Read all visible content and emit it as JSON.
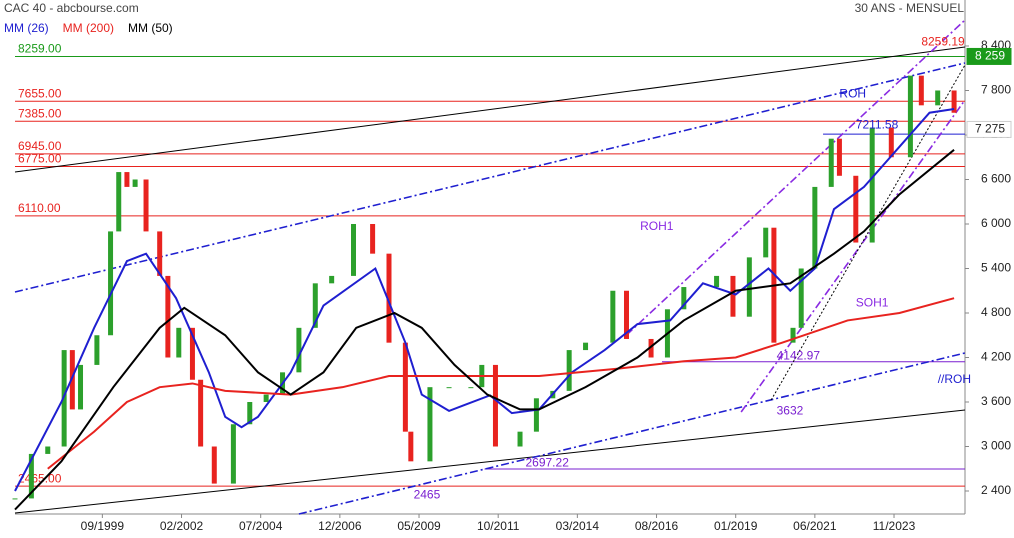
{
  "chart_data": {
    "type": "candlestick",
    "title": "CAC 40 - abcbourse.com",
    "subtitle": "30 ANS - MENSUEL",
    "xlim": [
      "1997-01",
      "2026-01"
    ],
    "ylim": [
      2090,
      9020
    ],
    "xticks": [
      {
        "value": "1999-09",
        "label": "09/1999"
      },
      {
        "value": "2002-02",
        "label": "02/2002"
      },
      {
        "value": "2004-07",
        "label": "07/2004"
      },
      {
        "value": "2006-12",
        "label": "12/2006"
      },
      {
        "value": "2009-05",
        "label": "05/2009"
      },
      {
        "value": "2011-10",
        "label": "10/2011"
      },
      {
        "value": "2014-03",
        "label": "03/2014"
      },
      {
        "value": "2016-08",
        "label": "08/2016"
      },
      {
        "value": "2019-01",
        "label": "01/2019"
      },
      {
        "value": "2021-06",
        "label": "06/2021"
      },
      {
        "value": "2023-11",
        "label": "11/2023"
      }
    ],
    "yticks": [
      {
        "value": 2400,
        "label": "2 400"
      },
      {
        "value": 3000,
        "label": "3 000"
      },
      {
        "value": 3600,
        "label": "3 600"
      },
      {
        "value": 4200,
        "label": "4 200"
      },
      {
        "value": 4800,
        "label": "4 800"
      },
      {
        "value": 5400,
        "label": "5 400"
      },
      {
        "value": 6000,
        "label": "6 000"
      },
      {
        "value": 6600,
        "label": "6 600"
      },
      {
        "value": 7200,
        "label": "7 200"
      },
      {
        "value": 7800,
        "label": "7 800"
      },
      {
        "value": 8400,
        "label": "8 400"
      }
    ],
    "up_color": "#2ca02c",
    "down_color": "#e8231f",
    "x": [
      "1997-01",
      "1997-07",
      "1998-01",
      "1998-07",
      "1998-10",
      "1999-01",
      "1999-07",
      "1999-12",
      "2000-03",
      "2000-06",
      "2000-09",
      "2001-01",
      "2001-06",
      "2001-09",
      "2002-01",
      "2002-06",
      "2002-09",
      "2003-02",
      "2003-09",
      "2004-03",
      "2004-09",
      "2005-03",
      "2005-09",
      "2006-03",
      "2006-09",
      "2007-05",
      "2007-12",
      "2008-06",
      "2008-12",
      "2009-02",
      "2009-09",
      "2010-04",
      "2010-12",
      "2011-04",
      "2011-09",
      "2012-06",
      "2012-12",
      "2013-06",
      "2013-12",
      "2014-06",
      "2015-04",
      "2015-09",
      "2016-06",
      "2016-12",
      "2017-06",
      "2018-06",
      "2018-12",
      "2019-06",
      "2019-12",
      "2020-03",
      "2020-10",
      "2021-01",
      "2021-06",
      "2021-12",
      "2022-03",
      "2022-09",
      "2023-03",
      "2023-10",
      "2024-05",
      "2024-09",
      "2025-03",
      "2025-09"
    ],
    "close": [
      2300,
      2900,
      3000,
      4300,
      3500,
      4100,
      4500,
      5900,
      6700,
      6500,
      6600,
      5900,
      5300,
      4200,
      4600,
      3900,
      3000,
      2500,
      3300,
      3600,
      3700,
      4000,
      4600,
      5200,
      5300,
      6000,
      5600,
      4400,
      3200,
      2800,
      3800,
      3800,
      3800,
      4100,
      3000,
      3200,
      3650,
      3750,
      4300,
      4400,
      5100,
      4450,
      4200,
      4850,
      5150,
      5300,
      4750,
      5550,
      5950,
      4400,
      4600,
      5400,
      6500,
      7150,
      6650,
      5750,
      7300,
      6900,
      8000,
      7600,
      7800,
      7500
    ],
    "series": [
      {
        "name": "MM (26)",
        "color": "#1f1fd0",
        "x": [
          "1997-01",
          "1998-06",
          "1999-06",
          "2000-06",
          "2001-01",
          "2001-12",
          "2002-12",
          "2003-06",
          "2003-12",
          "2004-06",
          "2005-06",
          "2006-06",
          "2008-01",
          "2008-12",
          "2009-06",
          "2010-04",
          "2010-09",
          "2011-07",
          "2012-03",
          "2013-01",
          "2014-01",
          "2015-01",
          "2016-01",
          "2017-01",
          "2018-01",
          "2019-01",
          "2020-01",
          "2020-09",
          "2021-06",
          "2022-01",
          "2022-12",
          "2023-12",
          "2024-12",
          "2025-09"
        ],
        "values": [
          2400,
          3600,
          4600,
          5500,
          5600,
          5000,
          4000,
          3400,
          3260,
          3400,
          4000,
          4900,
          5400,
          4400,
          3700,
          3480,
          3550,
          3690,
          3450,
          3500,
          4000,
          4300,
          4650,
          4700,
          5200,
          5050,
          5400,
          5100,
          5400,
          6200,
          6500,
          7000,
          7500,
          7550
        ]
      },
      {
        "name": "MM (200)",
        "color": "#e8231f",
        "x": [
          "1998-01",
          "1999-06",
          "2000-06",
          "2001-06",
          "2002-06",
          "2003-06",
          "2005-06",
          "2007-01",
          "2008-06",
          "2010-06",
          "2013-01",
          "2015-06",
          "2017-06",
          "2019-01",
          "2020-06",
          "2022-06",
          "2024-01",
          "2025-09"
        ],
        "values": [
          2700,
          3200,
          3600,
          3800,
          3850,
          3750,
          3700,
          3800,
          3950,
          3950,
          3950,
          4050,
          4150,
          4200,
          4400,
          4700,
          4800,
          5000
        ]
      },
      {
        "name": "MM (50)",
        "color": "#000000",
        "x": [
          "1997-01",
          "1998-06",
          "2000-01",
          "2001-06",
          "2002-03",
          "2003-06",
          "2004-06",
          "2005-06",
          "2006-06",
          "2007-06",
          "2008-08",
          "2009-06",
          "2010-06",
          "2011-06",
          "2012-06",
          "2013-01",
          "2014-06",
          "2016-01",
          "2017-06",
          "2019-01",
          "2020-09",
          "2022-01",
          "2022-12",
          "2024-01",
          "2025-09"
        ],
        "values": [
          2150,
          2800,
          3800,
          4600,
          4870,
          4500,
          4000,
          3700,
          4000,
          4600,
          4800,
          4600,
          4100,
          3700,
          3500,
          3500,
          3800,
          4200,
          4700,
          5100,
          5200,
          5600,
          5900,
          6400,
          7000
        ]
      }
    ],
    "levels": [
      {
        "value": 8259,
        "label": "8259.00",
        "color": "#1a9a1a"
      },
      {
        "value": 7655,
        "label": "7655.00",
        "color": "#e8231f"
      },
      {
        "value": 7385,
        "label": "7385.00",
        "color": "#e8231f"
      },
      {
        "value": 6945,
        "label": "6945.00",
        "color": "#e8231f"
      },
      {
        "value": 6775,
        "label": "6775.00",
        "color": "#e8231f"
      },
      {
        "value": 6110,
        "label": "6110.00",
        "color": "#e8231f"
      },
      {
        "value": 2465,
        "label": "2465.00",
        "color": "#e8231f"
      }
    ],
    "price_levels": [
      {
        "value": 7211.58,
        "from": "2021-09",
        "color": "#1f1fd0"
      },
      {
        "value": 4142.97,
        "from": "2016-10",
        "color": "#7a1fd0"
      },
      {
        "value": 2697.22,
        "from": "2011-05",
        "color": "#7a1fd0"
      }
    ],
    "trendlines": [
      {
        "from": [
          "1997-01",
          6701
        ],
        "to": [
          "2026-01",
          8386
        ],
        "color": "#000000",
        "style": "solid"
      },
      {
        "from": [
          "1997-01",
          2103
        ],
        "to": [
          "2026-01",
          3492
        ],
        "color": "#000000",
        "style": "solid"
      },
      {
        "label": "ROH",
        "from": [
          "1997-01",
          5083
        ],
        "to": [
          "2026-01",
          8171
        ],
        "color": "#1f1fd0",
        "style": "dashdot",
        "at": [
          "2022-03",
          7750
        ]
      },
      {
        "label": "//ROH",
        "from": [
          "2005-09",
          2090
        ],
        "to": [
          "2026-01",
          4261
        ],
        "color": "#1f1fd0",
        "style": "dashdot",
        "at": [
          "2025-03",
          3900
        ]
      },
      {
        "label": "ROH1",
        "from": [
          "2015-09",
          4503
        ],
        "to": [
          "2026-01",
          8750
        ],
        "color": "#8a2be2",
        "style": "dashdot",
        "at": [
          "2016-02",
          5960
        ]
      },
      {
        "label": "SOH1",
        "from": [
          "2019-03",
          3465
        ],
        "to": [
          "2026-01",
          7672
        ],
        "color": "#8a2be2",
        "style": "dashdot",
        "at": [
          "2022-09",
          4930
        ]
      },
      {
        "from": [
          "2020-02",
          3627
        ],
        "to": [
          "2026-01",
          8144
        ],
        "color": "#000000",
        "style": "dotted"
      }
    ],
    "annotations": [
      {
        "text": 8259.19,
        "at": [
          "2024-09",
          8450
        ],
        "color": "#e8231f"
      },
      {
        "text": 7211.58,
        "at": [
          "2022-09",
          7330
        ],
        "color": "#1f1fd0"
      },
      {
        "text": 4142.97,
        "at": [
          "2020-04",
          4215
        ],
        "color": "#7a1fd0"
      },
      {
        "text": 2697.22,
        "at": [
          "2012-08",
          2770
        ],
        "color": "#7a1fd0"
      },
      {
        "text": 2465,
        "at": [
          "2009-03",
          2345
        ],
        "color": "#7a1fd0"
      },
      {
        "text": 3632,
        "at": [
          "2020-04",
          3475
        ],
        "color": "#7a1fd0"
      }
    ],
    "badges": [
      {
        "value": 8259,
        "label": "8 259",
        "color": "#1a9a1a"
      },
      {
        "value": 7275,
        "label": "7 275",
        "color": "#ffffff"
      }
    ]
  }
}
